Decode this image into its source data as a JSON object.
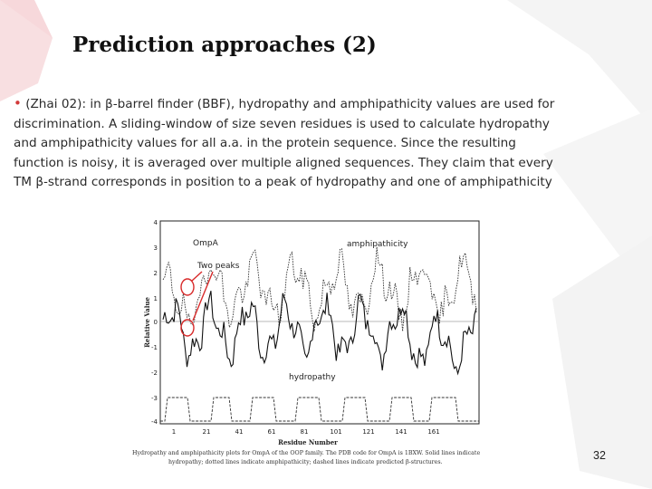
{
  "slide": {
    "title": "Prediction approaches (2)",
    "bullet_lines": [
      "(Zhai 02): in β-barrel finder (BBF), hydropathy and amphipathicity values are used for",
      "discrimination. A sliding-window of size seven residues is used to calculate hydropathy",
      "and amphipathicity values for all a.a. in the protein sequence. Since the resulting",
      "function is noisy, it is averaged over multiple aligned sequences. They claim that every",
      "TM β-strand corresponds in position to a peak of hydropathy and one of amphipathicity"
    ],
    "bullet_symbol": "•",
    "page_number": "32",
    "accent_color": "#d23a3a"
  },
  "figure": {
    "ylabel": "Relative Value",
    "xlabel": "Residue Number",
    "y_ticks": [
      "4",
      "3",
      "2",
      "1",
      "0",
      "-1",
      "-2",
      "-3",
      "-4"
    ],
    "x_ticks": [
      "1",
      "21",
      "41",
      "61",
      "81",
      "101",
      "121",
      "141",
      "161"
    ],
    "annotations": {
      "ompa": "OmpA",
      "two_peaks": "Two peaks",
      "amphipathicity": "amphipathicity",
      "hydropathy": "hydropathy"
    },
    "caption_lines": [
      "Hydropathy and amphipathicity plots for OmpA of the OOP family. The PDB code for OmpA is 1BXW. Solid lines indicate",
      "hydropathy; dotted lines indicate amphipathicity; dashed lines indicate predicted β-structures."
    ]
  }
}
